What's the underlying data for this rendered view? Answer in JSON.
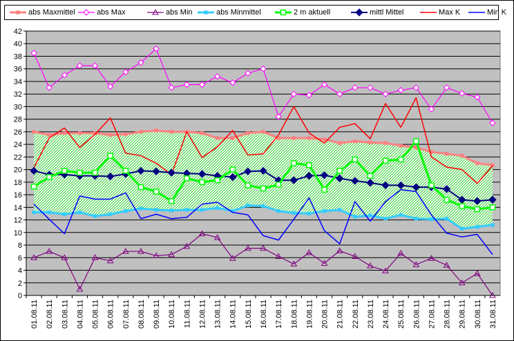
{
  "chart_data": {
    "type": "line",
    "categories": [
      "01.08.11",
      "02.08.11",
      "03.08.11",
      "04.08.11",
      "05.08.11",
      "06.08.11",
      "07.08.11",
      "08.08.11",
      "09.08.11",
      "10.08.11",
      "11.08.11",
      "12.08.11",
      "13.08.11",
      "14.08.11",
      "15.08.11",
      "16.08.11",
      "17.08.11",
      "18.08.11",
      "19.08.11",
      "20.08.11",
      "21.08.11",
      "22.08.11",
      "23.08.11",
      "24.08.11",
      "25.08.11",
      "26.08.11",
      "27.08.11",
      "28.08.11",
      "29.08.11",
      "30.08.11",
      "31.08.11"
    ],
    "ylim": [
      0,
      42
    ],
    "yticks": [
      "0",
      "2",
      "4",
      "6",
      "8",
      "10",
      "12",
      "14",
      "16",
      "18",
      "20",
      "22",
      "24",
      "26",
      "28",
      "30",
      "32",
      "34",
      "36",
      "38",
      "40",
      "42"
    ],
    "grid": "horizontal",
    "plot_background": "#c0c0c0",
    "band": {
      "upper": "abs Maxmittel",
      "lower": "abs Minmittel",
      "pattern": "green diagonal hatch"
    },
    "legend_position": "top",
    "series": [
      {
        "name": "abs Maxmittel",
        "color": "#ff8080",
        "marker": "star",
        "values": [
          26.0,
          25.5,
          25.8,
          25.8,
          25.8,
          25.5,
          25.6,
          26.0,
          26.2,
          26.0,
          26.0,
          25.8,
          25.0,
          25.0,
          25.8,
          26.0,
          25.0,
          25.0,
          25.0,
          24.8,
          24.2,
          24.5,
          24.3,
          24.2,
          23.8,
          23.5,
          22.8,
          22.5,
          22.2,
          21.0,
          20.7
        ]
      },
      {
        "name": "abs Max",
        "color": "#ff00ff",
        "marker": "diamond-open",
        "values": [
          38.5,
          33.0,
          35.0,
          36.5,
          36.5,
          33.2,
          35.5,
          37.0,
          39.2,
          33.0,
          33.5,
          33.5,
          34.8,
          33.8,
          35.3,
          36.0,
          28.4,
          32.0,
          31.8,
          33.5,
          32.0,
          33.0,
          33.0,
          32.0,
          32.6,
          33.0,
          29.6,
          33.0,
          32.1,
          31.5,
          27.4
        ]
      },
      {
        "name": "abs Min",
        "color": "#800080",
        "marker": "triangle-open",
        "values": [
          6.0,
          7.0,
          6.0,
          1.0,
          6.0,
          5.5,
          7.0,
          7.0,
          6.3,
          6.5,
          7.8,
          9.8,
          9.2,
          5.9,
          7.5,
          7.5,
          6.2,
          5.0,
          6.8,
          5.1,
          7.1,
          6.2,
          4.7,
          3.9,
          6.7,
          4.9,
          5.9,
          4.8,
          2.0,
          3.5,
          0.0
        ]
      },
      {
        "name": "abs Minmittel",
        "color": "#33ccff",
        "marker": "star",
        "values": [
          13.2,
          13.2,
          12.9,
          13.2,
          12.6,
          12.9,
          13.4,
          13.8,
          13.6,
          13.5,
          13.6,
          13.6,
          13.9,
          13.4,
          14.3,
          14.2,
          13.4,
          13.1,
          13.0,
          13.4,
          13.6,
          12.5,
          12.7,
          12.2,
          12.8,
          12.2,
          12.1,
          12.2,
          10.6,
          10.9,
          11.2
        ]
      },
      {
        "name": "2 m aktuell",
        "color": "#00ff00",
        "marker": "square-open",
        "values": [
          17.3,
          18.8,
          19.8,
          19.5,
          19.5,
          22.2,
          19.8,
          17.2,
          16.5,
          15.0,
          18.6,
          18.0,
          18.3,
          20.0,
          17.5,
          17.0,
          17.6,
          21.0,
          20.7,
          16.8,
          19.8,
          21.6,
          19.0,
          21.4,
          21.6,
          24.5,
          17.5,
          15.2,
          14.2,
          13.7,
          14.0
        ]
      },
      {
        "name": "mittl Mittel",
        "color": "#000080",
        "marker": "diamond-filled",
        "values": [
          19.8,
          19.2,
          19.2,
          19.0,
          19.0,
          18.9,
          19.3,
          19.8,
          19.7,
          19.5,
          19.4,
          19.3,
          19.0,
          18.8,
          19.7,
          19.8,
          18.3,
          18.3,
          19.0,
          19.1,
          18.6,
          18.2,
          17.9,
          17.5,
          17.5,
          17.2,
          17.2,
          16.9,
          15.2,
          15.0,
          15.2
        ]
      },
      {
        "name": "Max K",
        "color": "#ff0000",
        "marker": "none",
        "values": [
          20.3,
          25.0,
          26.6,
          23.5,
          25.6,
          28.2,
          22.6,
          22.2,
          21.0,
          19.2,
          26.0,
          21.9,
          23.6,
          26.2,
          22.3,
          22.5,
          25.5,
          30.0,
          25.8,
          24.2,
          26.7,
          27.3,
          24.9,
          30.5,
          26.7,
          31.4,
          22.0,
          20.4,
          20.0,
          17.8,
          20.6
        ]
      },
      {
        "name": "Min K",
        "color": "#0000ff",
        "marker": "none",
        "values": [
          14.5,
          12.1,
          9.8,
          15.8,
          15.3,
          15.3,
          16.3,
          12.2,
          12.9,
          12.2,
          12.4,
          14.5,
          14.8,
          13.2,
          12.8,
          9.5,
          8.8,
          12.1,
          15.5,
          10.3,
          8.2,
          14.9,
          11.8,
          14.9,
          16.8,
          16.5,
          12.8,
          9.9,
          9.3,
          9.7,
          6.5
        ]
      }
    ]
  }
}
